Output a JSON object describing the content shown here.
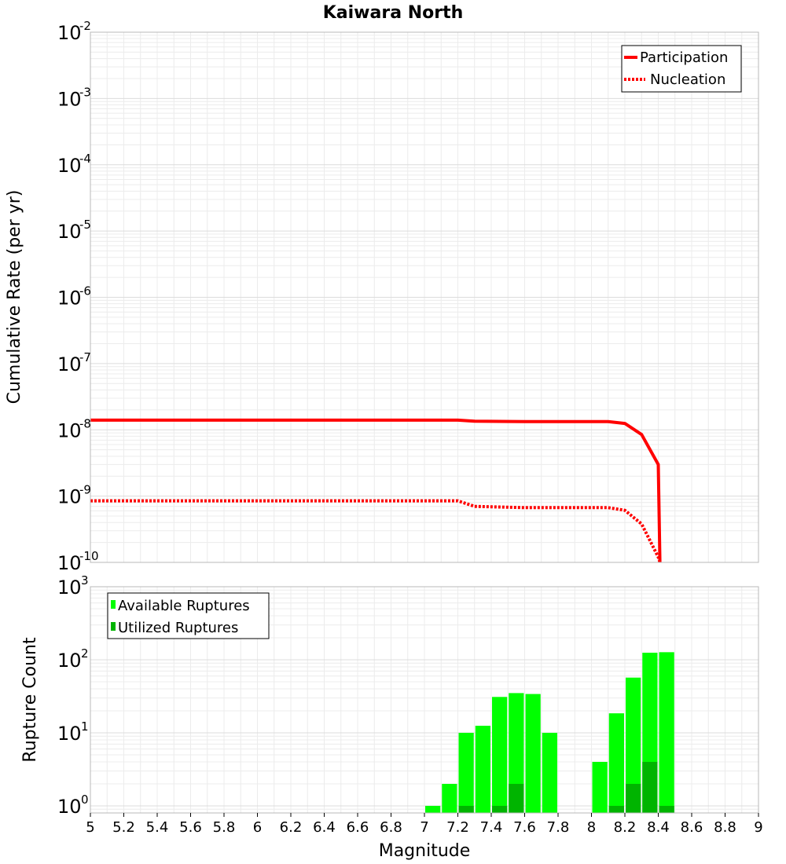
{
  "chart_data": [
    {
      "type": "line",
      "title": "Kaiwara North",
      "xlabel": "",
      "ylabel": "Cumulative Rate (per yr)",
      "xlim": [
        5,
        9
      ],
      "ylim": [
        1e-10,
        0.01
      ],
      "yscale": "log",
      "y_ticks": [
        {
          "base": "10",
          "exp": "-2",
          "value": 0.01
        },
        {
          "base": "10",
          "exp": "-3",
          "value": 0.001
        },
        {
          "base": "10",
          "exp": "-4",
          "value": 0.0001
        },
        {
          "base": "10",
          "exp": "-5",
          "value": 1e-05
        },
        {
          "base": "10",
          "exp": "-6",
          "value": 1e-06
        },
        {
          "base": "10",
          "exp": "-7",
          "value": 1e-07
        },
        {
          "base": "10",
          "exp": "-8",
          "value": 1e-08
        },
        {
          "base": "10",
          "exp": "-9",
          "value": 1e-09
        },
        {
          "base": "10",
          "exp": "-10",
          "value": 1e-10
        }
      ],
      "grid": true,
      "legend_position": "top-right",
      "series": [
        {
          "name": "Participation",
          "style": "solid",
          "color": "#ff0000",
          "x": [
            5.0,
            7.2,
            7.3,
            7.6,
            8.1,
            8.2,
            8.3,
            8.4,
            8.41
          ],
          "y": [
            1.4e-08,
            1.4e-08,
            1.35e-08,
            1.33e-08,
            1.33e-08,
            1.25e-08,
            8.5e-09,
            3e-09,
            1e-10
          ]
        },
        {
          "name": "Nucleation",
          "style": "dotted",
          "color": "#ff0000",
          "x": [
            5.0,
            7.2,
            7.3,
            7.6,
            8.1,
            8.2,
            8.3,
            8.4,
            8.41
          ],
          "y": [
            8.5e-10,
            8.5e-10,
            7e-10,
            6.7e-10,
            6.7e-10,
            6.1e-10,
            3.8e-10,
            1.2e-10,
            1e-10
          ]
        }
      ]
    },
    {
      "type": "bar",
      "title": "",
      "xlabel": "Magnitude",
      "ylabel": "Rupture Count",
      "xlim": [
        5,
        9
      ],
      "ylim": [
        0.8,
        1000
      ],
      "yscale": "log",
      "x_ticks": [
        "5",
        "5.2",
        "5.4",
        "5.6",
        "5.8",
        "6",
        "6.2",
        "6.4",
        "6.6",
        "6.8",
        "7",
        "7.2",
        "7.4",
        "7.6",
        "7.8",
        "8",
        "8.2",
        "8.4",
        "8.6",
        "8.8",
        "9"
      ],
      "y_ticks": [
        {
          "base": "10",
          "exp": "3",
          "value": 1000
        },
        {
          "base": "10",
          "exp": "2",
          "value": 100
        },
        {
          "base": "10",
          "exp": "1",
          "value": 10
        },
        {
          "base": "10",
          "exp": "0",
          "value": 1
        }
      ],
      "grid": true,
      "legend_position": "top-left",
      "bin_width": 0.1,
      "x": [
        7.05,
        7.15,
        7.25,
        7.35,
        7.45,
        7.55,
        7.65,
        7.75,
        8.05,
        8.15,
        8.25,
        8.35,
        8.45
      ],
      "series": [
        {
          "name": "Available Ruptures",
          "color": "#00ff00",
          "values": [
            1,
            2,
            10,
            12.5,
            31,
            35,
            34,
            10,
            4,
            18.5,
            57,
            125,
            127
          ]
        },
        {
          "name": "Utilized Ruptures",
          "color": "#00b400",
          "values": [
            0,
            0,
            1,
            0,
            1,
            2,
            0,
            0,
            0,
            1,
            2,
            4,
            1
          ]
        }
      ]
    }
  ]
}
